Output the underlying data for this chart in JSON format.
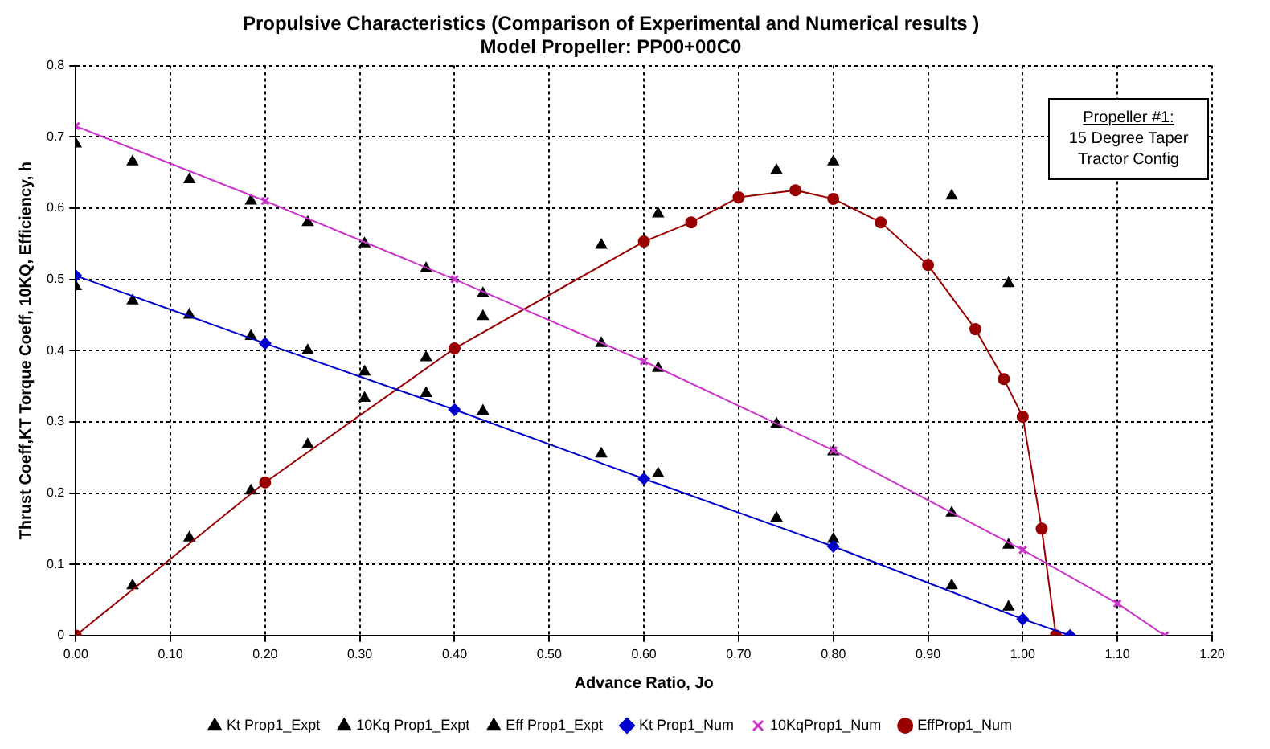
{
  "chart_data": {
    "type": "scatter",
    "title": "Propulsive Characteristics (Comparison of Experimental and Numerical results )",
    "subtitle": "Model Propeller: PP00+00C0",
    "xlabel": "Advance Ratio, Jo",
    "ylabel": "Thrust Coeff,KT Torque Coeff, 10KQ, Efficiency, h",
    "annotations": [
      "Propeller #1:",
      "15 Degree Taper Tractor Config"
    ],
    "xlim": [
      0,
      1.2
    ],
    "xticks": [
      {
        "value": 0,
        "label": "0.00"
      },
      {
        "value": 0.1,
        "label": "0.10"
      },
      {
        "value": 0.2,
        "label": "0.20"
      },
      {
        "value": 0.3,
        "label": "0.30"
      },
      {
        "value": 0.4,
        "label": "0.40"
      },
      {
        "value": 0.5,
        "label": "0.50"
      },
      {
        "value": 0.6,
        "label": "0.60"
      },
      {
        "value": 0.7,
        "label": "0.70"
      },
      {
        "value": 0.8,
        "label": "0.80"
      },
      {
        "value": 0.9,
        "label": "0.90"
      },
      {
        "value": 1,
        "label": "1.00"
      },
      {
        "value": 1.1,
        "label": "1.10"
      },
      {
        "value": 1.2,
        "label": "1.20"
      }
    ],
    "ylim": [
      0,
      0.8
    ],
    "yticks": [
      0,
      0.1,
      0.2,
      0.3,
      0.4,
      0.5,
      0.6,
      0.7,
      0.8
    ],
    "grid": true,
    "legend": "bottom",
    "series": [
      {
        "name": "Kt Prop1_Expt",
        "type": "scatter",
        "marker": "triangle",
        "color": "#000000",
        "x": [
          0,
          0.06,
          0.12,
          0.185,
          0.245,
          0.305,
          0.37,
          0.43,
          0.555,
          0.615,
          0.74,
          0.8,
          0.925,
          0.985
        ],
        "values": [
          0.49,
          0.47,
          0.45,
          0.42,
          0.4,
          0.37,
          0.34,
          0.315,
          0.255,
          0.227,
          0.165,
          0.135,
          0.07,
          0.04
        ]
      },
      {
        "name": "10Kq Prop1_Expt",
        "type": "scatter",
        "marker": "triangle",
        "color": "#000000",
        "x": [
          0,
          0.06,
          0.12,
          0.185,
          0.245,
          0.305,
          0.37,
          0.43,
          0.555,
          0.615,
          0.74,
          0.8,
          0.925,
          0.985
        ],
        "values": [
          0.69,
          0.665,
          0.64,
          0.61,
          0.58,
          0.55,
          0.515,
          0.48,
          0.41,
          0.375,
          0.297,
          0.258,
          0.172,
          0.127
        ]
      },
      {
        "name": "Eff Prop1_Expt",
        "type": "scatter",
        "marker": "triangle",
        "color": "#000000",
        "x": [
          0.06,
          0.12,
          0.185,
          0.245,
          0.305,
          0.37,
          0.43,
          0.555,
          0.615,
          0.74,
          0.8,
          0.925,
          0.985
        ],
        "values": [
          0.07,
          0.137,
          0.203,
          0.268,
          0.333,
          0.39,
          0.448,
          0.548,
          0.592,
          0.653,
          0.665,
          0.617,
          0.494
        ]
      },
      {
        "name": "Kt Prop1_Num",
        "type": "line",
        "marker": "diamond",
        "color": "#0000cc",
        "x": [
          0,
          0.2,
          0.4,
          0.6,
          0.8,
          1.0,
          1.05
        ],
        "values": [
          0.505,
          0.41,
          0.317,
          0.22,
          0.125,
          0.023,
          0
        ]
      },
      {
        "name": "10KqProp1_Num",
        "type": "line",
        "marker": "cross",
        "color": "#cc33cc",
        "x": [
          0,
          0.2,
          0.4,
          0.6,
          0.8,
          1.0,
          1.1,
          1.15
        ],
        "values": [
          0.715,
          0.61,
          0.5,
          0.385,
          0.26,
          0.12,
          0.045,
          0
        ]
      },
      {
        "name": "EffProp1_Num",
        "type": "line",
        "marker": "circle",
        "color": "#990000",
        "x": [
          0,
          0.2,
          0.4,
          0.6,
          0.65,
          0.7,
          0.76,
          0.8,
          0.85,
          0.9,
          0.95,
          0.98,
          1.0,
          1.02,
          1.035
        ],
        "values": [
          0,
          0.215,
          0.403,
          0.553,
          0.58,
          0.615,
          0.625,
          0.613,
          0.58,
          0.52,
          0.43,
          0.36,
          0.307,
          0.15,
          0
        ]
      }
    ]
  }
}
